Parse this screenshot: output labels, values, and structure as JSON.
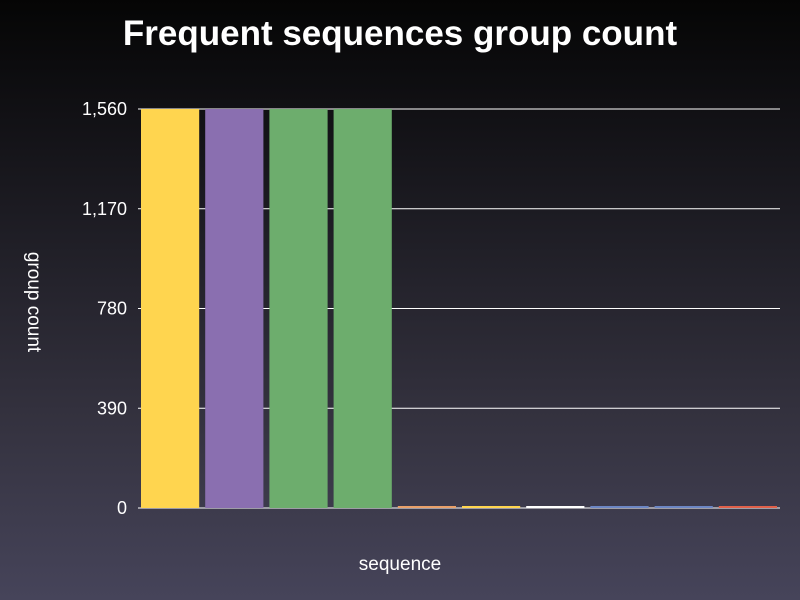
{
  "chart_data": {
    "type": "bar",
    "title": "Frequent sequences group count",
    "xlabel": "sequence",
    "ylabel": "group count",
    "ylim": [
      0,
      1560
    ],
    "yticks": [
      0,
      390,
      780,
      1170,
      1560
    ],
    "ytick_labels": [
      "0",
      "390",
      "780",
      "1,170",
      "1,560"
    ],
    "grid": true,
    "values": [
      1560,
      1560,
      1560,
      1560,
      3,
      3,
      3,
      3,
      3,
      3
    ],
    "colors": [
      "#ffd54f",
      "#8a6fb0",
      "#6dad6d",
      "#6dad6d",
      "#e8a06a",
      "#ffd54f",
      "#ffffff",
      "#6c86c4",
      "#6c86c4",
      "#e0604a"
    ]
  }
}
